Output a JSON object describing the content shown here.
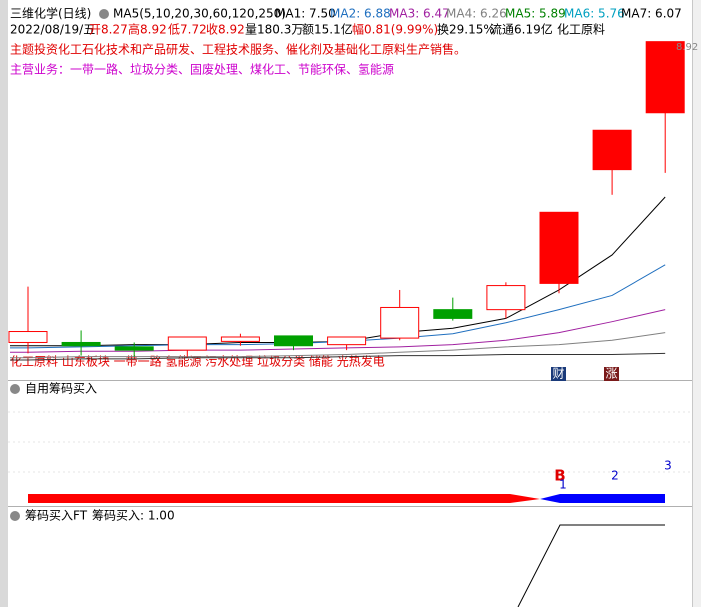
{
  "header": {
    "title": "三维化学(日线)",
    "ma_params": "MA5(5,10,20,30,60,120,250)",
    "ma_labels": [
      {
        "text": "MA1: 7.50",
        "color": "#000000"
      },
      {
        "text": "MA2: 6.88",
        "color": "#1f6fbf"
      },
      {
        "text": "MA3: 6.47",
        "color": "#a020a0"
      },
      {
        "text": "MA4: 6.26",
        "color": "#808080"
      },
      {
        "text": "MA5: 5.89",
        "color": "#008000"
      },
      {
        "text": "MA6: 5.76",
        "color": "#00a0c0"
      },
      {
        "text": "MA7: 6.07",
        "color": "#000000"
      }
    ]
  },
  "quote": [
    {
      "text": "2022/08/19/五",
      "color": "#000000"
    },
    {
      "text": "开8.27",
      "color": "#e00000"
    },
    {
      "text": "高8.92",
      "color": "#e00000"
    },
    {
      "text": "低7.72",
      "color": "#e00000"
    },
    {
      "text": "收8.92",
      "color": "#e00000"
    },
    {
      "text": "量180.3万",
      "color": "#000000"
    },
    {
      "text": "额15.1亿",
      "color": "#000000"
    },
    {
      "text": "幅0.81(9.99%)",
      "color": "#e00000"
    },
    {
      "text": "换29.15%",
      "color": "#000000"
    },
    {
      "text": "流通6.19亿",
      "color": "#000000"
    },
    {
      "text": "化工原料",
      "color": "#000000"
    }
  ],
  "theme": "主题投资化工石化技术和产品研发、工程技术服务、催化剂及基础化工原料生产销售。",
  "business": "主营业务：一带一路、垃圾分类、固废处理、煤化工、节能环保、氢能源",
  "concepts": "化工原料 山东板块 一带一路 氢能源 污水处理 垃圾分类 储能 光热发电",
  "badges": [
    "财",
    "涨"
  ],
  "panel2": {
    "title": "自用筹码买入",
    "signals": [
      "B",
      "1",
      "2",
      "3"
    ]
  },
  "panel3": {
    "title": "筹码买入FT",
    "value_label": "筹码买入: 1.00"
  },
  "chart_data": {
    "type": "candlestick",
    "open": [
      6.17,
      6.17,
      6.13,
      6.1,
      6.18,
      6.23,
      6.15,
      6.21,
      6.47,
      6.47,
      6.71,
      7.75,
      8.27
    ],
    "high": [
      6.68,
      6.28,
      6.17,
      6.22,
      6.25,
      6.23,
      6.22,
      6.65,
      6.58,
      6.72,
      7.36,
      8.11,
      8.92
    ],
    "low": [
      6.07,
      6.05,
      6.04,
      6.04,
      6.14,
      6.1,
      6.1,
      6.19,
      6.37,
      6.39,
      6.62,
      7.52,
      7.72
    ],
    "close": [
      6.27,
      6.14,
      6.1,
      6.22,
      6.22,
      6.14,
      6.22,
      6.49,
      6.39,
      6.69,
      7.36,
      8.11,
      8.92
    ],
    "up_filled": [
      false,
      false,
      false,
      false,
      false,
      false,
      false,
      false,
      false,
      false,
      true,
      true,
      true
    ],
    "up_color": "#ff0000",
    "down_color": "#00a000",
    "ylim": [
      5.9,
      8.99
    ],
    "series": [
      {
        "color": "#000000",
        "values": [
          6.14,
          6.14,
          6.15,
          6.15,
          6.17,
          6.17,
          6.18,
          6.26,
          6.3,
          6.39,
          6.65,
          6.97,
          7.5
        ]
      },
      {
        "color": "#1f6fbf",
        "values": [
          6.12,
          6.13,
          6.14,
          6.15,
          6.15,
          6.16,
          6.18,
          6.21,
          6.25,
          6.35,
          6.47,
          6.6,
          6.88
        ]
      },
      {
        "color": "#a020a0",
        "values": [
          6.08,
          6.09,
          6.09,
          6.1,
          6.1,
          6.11,
          6.12,
          6.13,
          6.15,
          6.19,
          6.26,
          6.36,
          6.47
        ]
      },
      {
        "color": "#808080",
        "values": [
          6.03,
          6.04,
          6.04,
          6.04,
          6.04,
          6.05,
          6.06,
          6.08,
          6.1,
          6.13,
          6.15,
          6.19,
          6.26
        ]
      },
      {
        "color": "#333333",
        "values": [
          6.01,
          6.02,
          6.02,
          6.03,
          6.03,
          6.03,
          6.04,
          6.05,
          6.05,
          6.06,
          6.06,
          6.06,
          6.07
        ]
      }
    ]
  }
}
